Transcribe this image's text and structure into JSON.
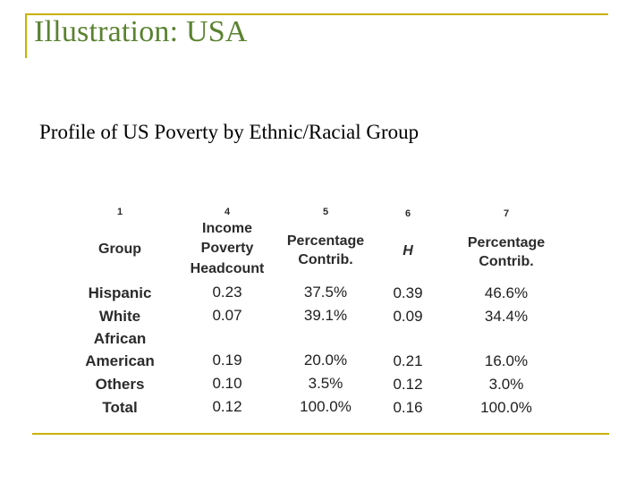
{
  "slide": {
    "title": "Illustration:  USA",
    "subtitle": "Profile of US Poverty by Ethnic/Racial Group"
  },
  "table": {
    "column_numbers": [
      "1",
      "4",
      "5",
      "6",
      "7"
    ],
    "headers": {
      "group": "Group",
      "income_1": "Income",
      "income_2": "Poverty",
      "income_3": "Headcount",
      "pct1_1": "Percentage",
      "pct1_2": "Contrib.",
      "h": "H",
      "pct2_1": "Percentage",
      "pct2_2": "Contrib."
    },
    "rows": [
      {
        "group": "Hispanic",
        "headcount": "0.23",
        "pct1": "37.5%",
        "h": "0.39",
        "pct2": "46.6%"
      },
      {
        "group": "White",
        "headcount": "0.07",
        "pct1": "39.1%",
        "h": "0.09",
        "pct2": "34.4%"
      },
      {
        "group_1": "African",
        "group_2": "American",
        "headcount": "0.19",
        "pct1": "20.0%",
        "h": "0.21",
        "pct2": "16.0%"
      },
      {
        "group": "Others",
        "headcount": "0.10",
        "pct1": "3.5%",
        "h": "0.12",
        "pct2": "3.0%"
      },
      {
        "group": "Total",
        "headcount": "0.12",
        "pct1": "100.0%",
        "h": "0.16",
        "pct2": "100.0%"
      }
    ]
  },
  "colors": {
    "title": "#5a8230",
    "rule": "#c9b100"
  }
}
